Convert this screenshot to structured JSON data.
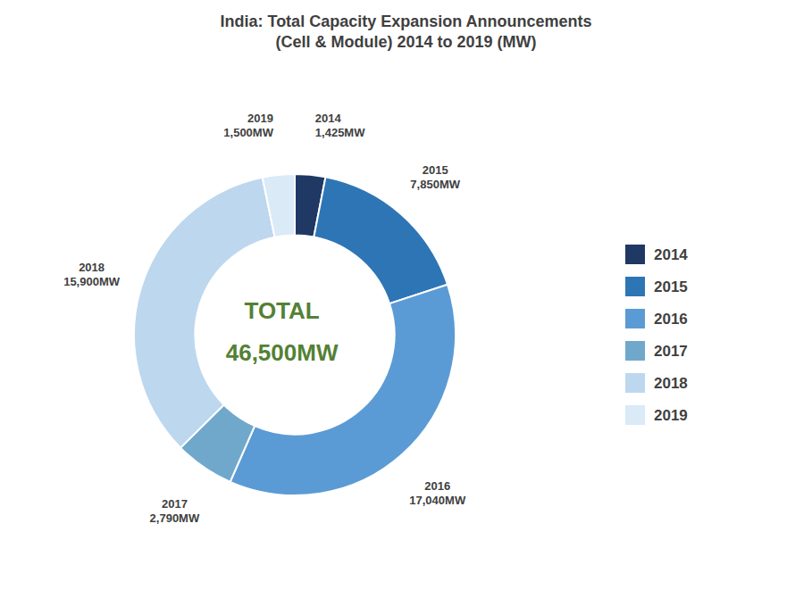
{
  "chart_data": {
    "type": "donut",
    "title": "India: Total Capacity Expansion Announcements\n(Cell & Module) 2014 to 2019 (MW)",
    "categories": [
      "2014",
      "2015",
      "2016",
      "2017",
      "2018",
      "2019"
    ],
    "values": [
      1425,
      7850,
      17040,
      2790,
      15900,
      1500
    ],
    "value_labels": [
      "1,425MW",
      "7,850MW",
      "17,040MW",
      "2,790MW",
      "15,900MW",
      "1,500MW"
    ],
    "colors": [
      "#1F3864",
      "#2E75B6",
      "#5B9BD5",
      "#70A8CC",
      "#BDD7EE",
      "#DAEAF7"
    ],
    "data_labels": true,
    "legend": "right",
    "annotations": [
      "TOTAL",
      "46,500MW"
    ]
  }
}
